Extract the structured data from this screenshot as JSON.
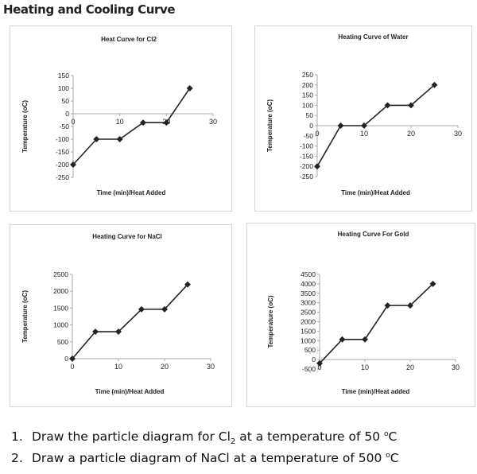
{
  "title": "Heating and Cooling Curve",
  "chart_data": [
    {
      "type": "line",
      "title": "Heat Curve for Cl2",
      "xlabel": "Time (min)/Heat Added",
      "ylabel": "Temperature (oC)",
      "x": [
        0,
        5,
        10,
        15,
        20,
        25
      ],
      "values": [
        -200,
        -100,
        -100,
        -35,
        -35,
        100
      ],
      "xlim": [
        0,
        30
      ],
      "ylim": [
        -250,
        150
      ],
      "xticks": [
        0,
        10,
        20,
        30
      ],
      "yticks": [
        150,
        100,
        50,
        0,
        -50,
        -100,
        -150,
        -200,
        -250
      ],
      "grid": false,
      "legend": "none",
      "color": "#222222"
    },
    {
      "type": "line",
      "title": "Heating Curve of Water",
      "xlabel": "Time (min)/Heat Added",
      "ylabel": "Temperature (oC)",
      "x": [
        0,
        5,
        10,
        15,
        20,
        25
      ],
      "values": [
        -200,
        0,
        0,
        100,
        100,
        200
      ],
      "xlim": [
        0,
        30
      ],
      "ylim": [
        -250,
        250
      ],
      "xticks": [
        0,
        10,
        20,
        30
      ],
      "yticks": [
        250,
        200,
        150,
        100,
        50,
        0,
        -50,
        -100,
        -150,
        -200,
        -250
      ],
      "grid": false,
      "legend": "none",
      "color": "#222222"
    },
    {
      "type": "line",
      "title": "Heating Curve for NaCl",
      "xlabel": "Time (min)/Heat Added",
      "ylabel": "Temperature (oC)",
      "x": [
        0,
        5,
        10,
        15,
        20,
        25
      ],
      "values": [
        0,
        801,
        801,
        1465,
        1465,
        2200
      ],
      "xlim": [
        0,
        30
      ],
      "ylim": [
        0,
        2500
      ],
      "xticks": [
        0,
        10,
        20,
        30
      ],
      "yticks": [
        2500,
        2000,
        1500,
        1000,
        500,
        0
      ],
      "grid": false,
      "legend": "none",
      "color": "#222222"
    },
    {
      "type": "line",
      "title": "Heating Curve For Gold",
      "xlabel": "Time (min)/Heat added",
      "ylabel": "Temperature (oC)",
      "x": [
        0,
        5,
        10,
        15,
        20,
        25
      ],
      "values": [
        -200,
        1064,
        1064,
        2856,
        2856,
        4000
      ],
      "xlim": [
        0,
        30
      ],
      "ylim": [
        -500,
        4500
      ],
      "xticks": [
        0,
        10,
        20,
        30
      ],
      "yticks": [
        4500,
        4000,
        3500,
        3000,
        2500,
        2000,
        1500,
        1000,
        500,
        0,
        -500
      ],
      "grid": false,
      "legend": "none",
      "color": "#222222"
    }
  ],
  "questions": [
    {
      "number": "1.",
      "pre": "Draw the particle diagram for Cl",
      "sub": "2",
      "post": " at a temperature of 50 ",
      "sup": "o",
      "unit": "C"
    },
    {
      "number": "2.",
      "pre": "Draw a particle diagram of NaCl at a temperature of 500 ",
      "sup": "o",
      "unit": "C"
    }
  ]
}
